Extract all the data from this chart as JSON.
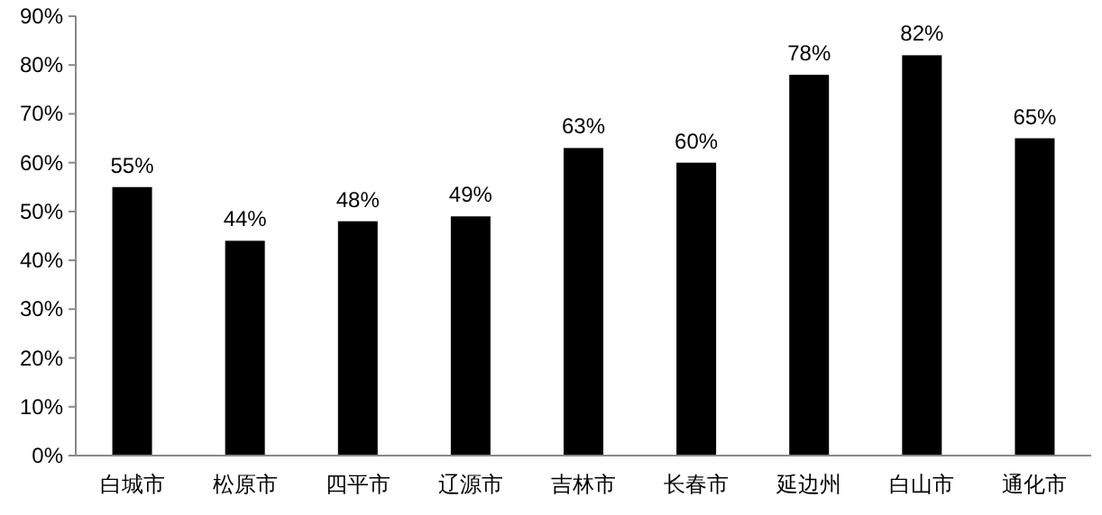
{
  "chart_data": {
    "type": "bar",
    "categories": [
      "白城市",
      "松原市",
      "四平市",
      "辽源市",
      "吉林市",
      "长春市",
      "延边州",
      "白山市",
      "通化市"
    ],
    "values": [
      55,
      44,
      48,
      49,
      63,
      60,
      78,
      82,
      65
    ],
    "value_labels": [
      "55%",
      "44%",
      "48%",
      "49%",
      "63%",
      "60%",
      "78%",
      "82%",
      "65%"
    ],
    "color": "#000000",
    "ylim": [
      0,
      90
    ],
    "yticks": [
      {
        "value": 0,
        "label": "0%"
      },
      {
        "value": 10,
        "label": "10%"
      },
      {
        "value": 20,
        "label": "20%"
      },
      {
        "value": 30,
        "label": "30%"
      },
      {
        "value": 40,
        "label": "40%"
      },
      {
        "value": 50,
        "label": "50%"
      },
      {
        "value": 60,
        "label": "60%"
      },
      {
        "value": 70,
        "label": "70%"
      },
      {
        "value": 80,
        "label": "80%"
      },
      {
        "value": 90,
        "label": "90%"
      }
    ],
    "grid": false
  }
}
